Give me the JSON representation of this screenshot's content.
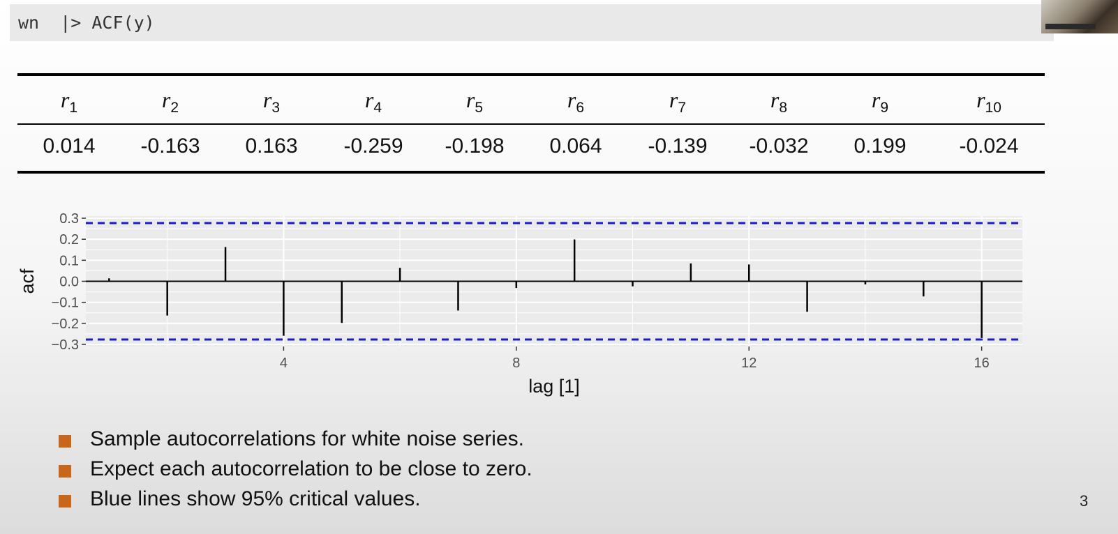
{
  "code": {
    "text": "wn  |> ACF(y)"
  },
  "table": {
    "headers": [
      {
        "base": "r",
        "sub": "1"
      },
      {
        "base": "r",
        "sub": "2"
      },
      {
        "base": "r",
        "sub": "3"
      },
      {
        "base": "r",
        "sub": "4"
      },
      {
        "base": "r",
        "sub": "5"
      },
      {
        "base": "r",
        "sub": "6"
      },
      {
        "base": "r",
        "sub": "7"
      },
      {
        "base": "r",
        "sub": "8"
      },
      {
        "base": "r",
        "sub": "9"
      },
      {
        "base": "r",
        "sub": "10"
      }
    ],
    "values": [
      "0.014",
      "-0.163",
      "0.163",
      "-0.259",
      "-0.198",
      "0.064",
      "-0.139",
      "-0.032",
      "0.199",
      "-0.024"
    ]
  },
  "chart_data": {
    "type": "bar",
    "title": "",
    "xlabel": "lag [1]",
    "ylabel": "acf",
    "x": [
      1,
      2,
      3,
      4,
      5,
      6,
      7,
      8,
      9,
      10,
      11,
      12,
      13,
      14,
      15,
      16
    ],
    "values": [
      0.014,
      -0.163,
      0.163,
      -0.259,
      -0.198,
      0.064,
      -0.139,
      -0.032,
      0.199,
      -0.024,
      0.085,
      0.08,
      -0.145,
      -0.015,
      -0.072,
      -0.27
    ],
    "xlim": [
      0.6,
      16.7
    ],
    "ylim": [
      -0.31,
      0.31
    ],
    "x_ticks": [
      4,
      8,
      12,
      16
    ],
    "y_ticks": [
      0.3,
      0.2,
      0.1,
      0.0,
      -0.1,
      -0.2,
      -0.3
    ],
    "y_tick_labels": [
      "0.3",
      "0.2",
      "0.1",
      "0.0",
      "−0.1",
      "−0.2",
      "−0.3"
    ],
    "critical_value": 0.277,
    "grid": true,
    "colors": {
      "panel": "#ebebeb",
      "grid": "#ffffff",
      "bars": "#000000",
      "critical": "#1a1ad6"
    }
  },
  "bullets": [
    "Sample autocorrelations for white noise series.",
    "Expect each autocorrelation to be close to zero.",
    "Blue lines show 95% critical values."
  ],
  "slide_number": "3",
  "colors": {
    "bullet": "#c8661a",
    "code_bg": "#e9e9e9"
  }
}
